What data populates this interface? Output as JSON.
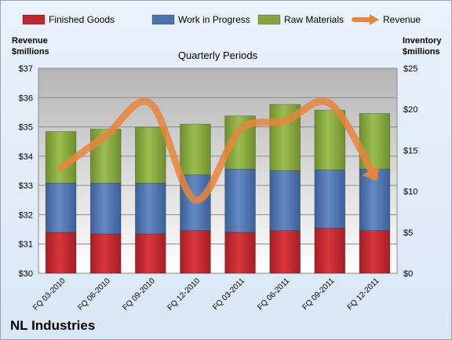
{
  "chart_data": {
    "type": "bar",
    "title": "NL Industries",
    "subtitle": "Quarterly Periods",
    "categories": [
      "FQ 03-2010",
      "FQ 06-2010",
      "FQ 09-2010",
      "FQ 12-2010",
      "FQ 03-2011",
      "FQ 06-2011",
      "FQ 09-2011",
      "FQ 12-2011"
    ],
    "series": [
      {
        "name": "Finished Goods",
        "type": "bar",
        "axis": "right",
        "color": "#c0262d",
        "values": [
          5.0,
          4.8,
          4.8,
          5.2,
          5.0,
          5.2,
          5.5,
          5.2
        ]
      },
      {
        "name": "Work in Progress",
        "type": "bar",
        "axis": "right",
        "color": "#4b73b0",
        "values": [
          11.0,
          11.0,
          11.0,
          12.0,
          12.7,
          12.5,
          12.6,
          12.7
        ]
      },
      {
        "name": "Raw Materials",
        "type": "bar",
        "axis": "right",
        "color": "#84a63c",
        "values": [
          17.3,
          17.6,
          17.8,
          18.2,
          19.2,
          20.6,
          19.9,
          19.5
        ]
      },
      {
        "name": "Revenue",
        "type": "line",
        "axis": "left",
        "color": "#e8853a",
        "values": [
          33.6,
          34.7,
          35.8,
          32.5,
          34.9,
          35.2,
          35.8,
          33.3
        ]
      }
    ],
    "stacked": true,
    "left_axis": {
      "title": "Revenue\n$millions",
      "min": 30,
      "max": 37,
      "ticks": [
        "$30",
        "$31",
        "$32",
        "$33",
        "$34",
        "$35",
        "$36",
        "$37"
      ]
    },
    "right_axis": {
      "title": "Inventory\n$millions",
      "min": 0,
      "max": 25,
      "ticks": [
        "$0",
        "$5",
        "$10",
        "$15",
        "$20",
        "$25"
      ]
    },
    "legend_position": "top",
    "grid": true
  },
  "labels": {
    "left_axis_title_1": "Revenue",
    "left_axis_title_2": "$millions",
    "right_axis_title_1": "Inventory",
    "right_axis_title_2": "$millions",
    "subtitle": "Quarterly Periods",
    "company": "NL Industries"
  }
}
